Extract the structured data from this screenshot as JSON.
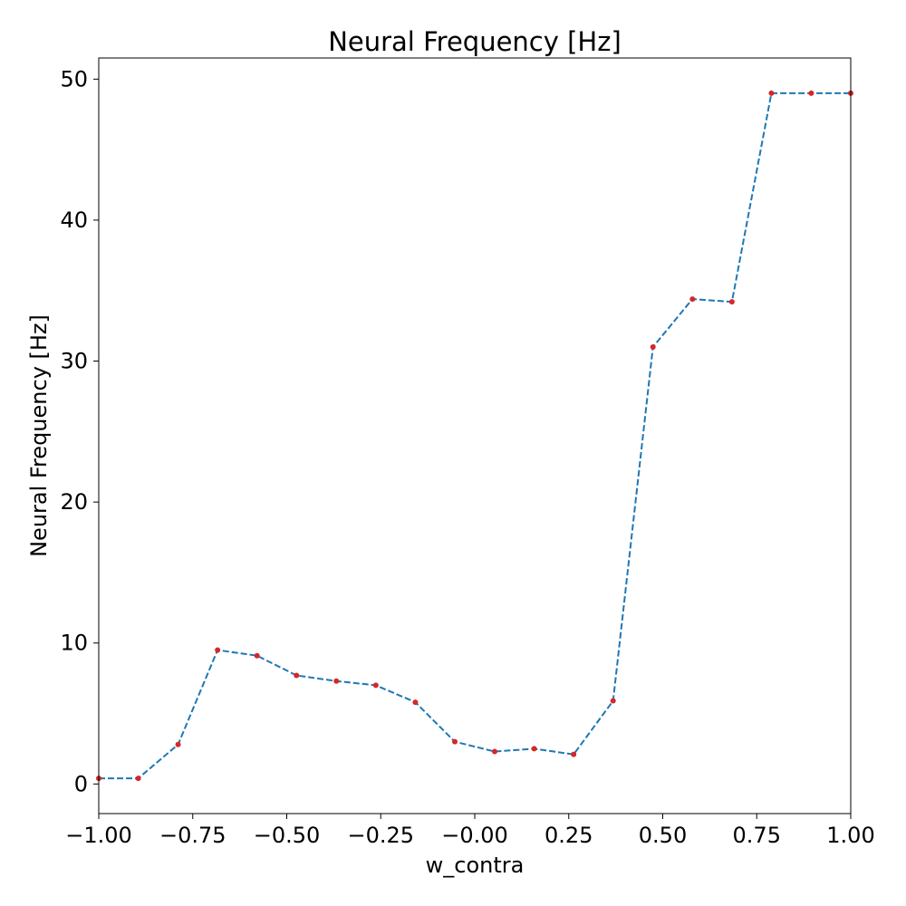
{
  "chart_data": {
    "type": "line",
    "title": "Neural Frequency [Hz]",
    "xlabel": "w_contra",
    "ylabel": "Neural Frequency [Hz]",
    "xlim": [
      -1.0,
      1.0
    ],
    "ylim": [
      -2.1,
      51.5
    ],
    "xticks": [
      -1.0,
      -0.75,
      -0.5,
      -0.25,
      0.0,
      0.25,
      0.5,
      0.75,
      1.0
    ],
    "xtick_labels": [
      "−1.00",
      "−0.75",
      "−0.50",
      "−0.25",
      "−0.00",
      "0.25",
      "0.50",
      "0.75",
      "1.00"
    ],
    "yticks": [
      0,
      10,
      20,
      30,
      40,
      50
    ],
    "ytick_labels": [
      "0",
      "10",
      "20",
      "30",
      "40",
      "50"
    ],
    "grid": false,
    "series": [
      {
        "line_color": "#1f77b4",
        "line_style": "dashed",
        "marker_color": "#d62728",
        "x": [
          -1.0,
          -0.895,
          -0.789,
          -0.684,
          -0.579,
          -0.474,
          -0.368,
          -0.263,
          -0.158,
          -0.053,
          0.053,
          0.158,
          0.263,
          0.368,
          0.474,
          0.579,
          0.684,
          0.789,
          0.895,
          1.0
        ],
        "y": [
          0.4,
          0.4,
          2.8,
          9.5,
          9.1,
          7.7,
          7.3,
          7.0,
          5.8,
          3.0,
          2.3,
          2.5,
          2.1,
          5.9,
          31.0,
          34.4,
          34.2,
          49.0,
          49.0,
          49.0
        ]
      }
    ]
  }
}
